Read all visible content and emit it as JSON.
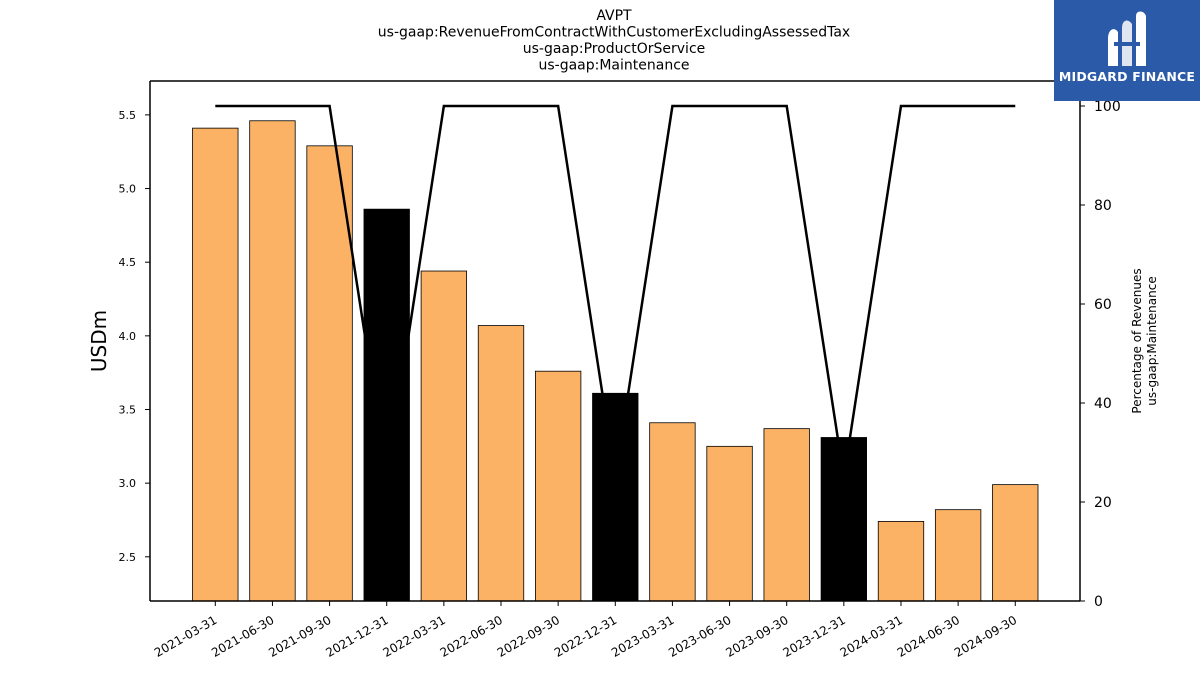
{
  "chart_data": {
    "type": "bar",
    "title_lines": [
      "AVPT",
      "us-gaap:RevenueFromContractWithCustomerExcludingAssessedTax",
      "us-gaap:ProductOrService",
      "us-gaap:Maintenance"
    ],
    "categories": [
      "2021-03-31",
      "2021-06-30",
      "2021-09-30",
      "2021-12-31",
      "2022-03-31",
      "2022-06-30",
      "2022-09-30",
      "2022-12-31",
      "2023-03-31",
      "2023-06-30",
      "2023-09-30",
      "2023-12-31",
      "2024-03-31",
      "2024-06-30",
      "2024-09-30"
    ],
    "series": [
      {
        "axis": "left",
        "type": "bar",
        "values": [
          5.41,
          5.46,
          5.29,
          4.86,
          4.44,
          4.07,
          3.76,
          3.61,
          3.41,
          3.25,
          3.37,
          3.31,
          2.74,
          2.82,
          2.99
        ],
        "bar_colors": [
          "#fbb264",
          "#fbb264",
          "#fbb264",
          "#000000",
          "#fbb264",
          "#fbb264",
          "#fbb264",
          "#000000",
          "#fbb264",
          "#fbb264",
          "#fbb264",
          "#000000",
          "#fbb264",
          "#fbb264",
          "#fbb264"
        ]
      },
      {
        "axis": "right",
        "type": "line",
        "color": "#000000",
        "values": [
          100,
          100,
          100,
          25,
          100,
          100,
          100,
          25,
          100,
          100,
          100,
          25,
          100,
          100,
          100
        ]
      }
    ],
    "ylabel": "USDm",
    "ylabel_right": [
      "Percentage of Revenues",
      "us-gaap:Maintenance"
    ],
    "ylim": [
      2.2,
      5.73
    ],
    "yticks": [
      "2.5",
      "3.0",
      "3.5",
      "4.0",
      "4.5",
      "5.0",
      "5.5"
    ],
    "ylim_right": [
      0,
      100
    ],
    "yticks_right": [
      "0",
      "20",
      "40",
      "60",
      "80",
      "100"
    ],
    "grid": false,
    "legend": "none"
  },
  "logo": {
    "text": "MIDGARD FINANCE",
    "background": "#2b5aa8"
  }
}
